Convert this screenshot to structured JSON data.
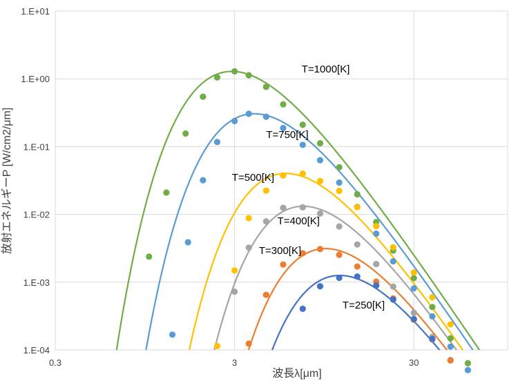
{
  "chart_data": {
    "type": "line",
    "xlabel": "波長λ[μm]",
    "ylabel": "放射エネルギーP [W/cm2/μm]",
    "x_scale": "log",
    "y_scale": "log",
    "xlim": [
      0.3,
      100
    ],
    "ylim": [
      0.0001,
      10
    ],
    "x_ticks": [
      0.3,
      3,
      30
    ],
    "x_tick_labels": [
      "0.3",
      "3",
      "30"
    ],
    "y_ticks": [
      0.0001,
      0.001,
      0.01,
      0.1,
      1,
      10
    ],
    "y_tick_labels": [
      "1.E-04",
      "1.E-03",
      "1.E-02",
      "1.E-01",
      "1.E+00",
      "1.E+01"
    ],
    "grid": true,
    "series": [
      {
        "name": "T=1000[K]",
        "color": "#70ad47",
        "x": [
          1.0,
          1.25,
          1.6,
          2.0,
          2.4,
          3.0,
          3.6,
          4.5,
          5.6,
          7.2,
          9.0,
          11.5,
          14.5,
          18.5,
          23.0,
          30.0,
          38.0,
          48.0,
          60.0
        ],
        "y": [
          0.00238,
          0.021,
          0.156,
          0.545,
          1.05,
          1.29,
          1.13,
          0.76,
          0.42,
          0.21,
          0.112,
          0.0495,
          0.0198,
          0.0077,
          0.00293,
          0.00115,
          0.00043,
          0.000148,
          6.37e-05
        ]
      },
      {
        "name": "T=750[K]",
        "color": "#5b9bd5",
        "x": [
          1.35,
          1.65,
          2.0,
          2.4,
          3.0,
          3.6,
          4.5,
          5.6,
          7.2,
          9.0,
          11.5,
          14.5,
          18.5,
          23.0,
          30.0,
          38.0,
          48.0,
          60.0
        ],
        "y": [
          0.000168,
          0.00388,
          0.0319,
          0.117,
          0.238,
          0.305,
          0.276,
          0.188,
          0.106,
          0.063,
          0.0295,
          0.0129,
          0.0052,
          0.00203,
          0.00081,
          0.000313,
          0.000112,
          5.04e-05
        ]
      },
      {
        "name": "T=500[K]",
        "color": "#ffc000",
        "x": [
          2.4,
          3.0,
          3.6,
          4.5,
          5.6,
          7.2,
          9.0,
          11.5,
          14.5,
          18.5,
          23.0,
          30.0,
          38.0,
          48.0
        ],
        "y": [
          0.000114,
          0.00149,
          0.0088,
          0.0224,
          0.0375,
          0.04,
          0.0311,
          0.0222,
          0.0128,
          0.0067,
          0.00327,
          0.00139,
          0.000598,
          0.000239
        ]
      },
      {
        "name": "T=400[K]",
        "color": "#a5a5a5",
        "x": [
          3.0,
          3.6,
          4.5,
          5.6,
          7.2,
          9.0,
          11.5,
          14.5,
          18.5,
          23.0,
          30.0,
          38.0,
          48.0
        ],
        "y": [
          0.000724,
          0.00323,
          0.00788,
          0.0125,
          0.0127,
          0.0103,
          0.00663,
          0.0036,
          0.00185,
          0.00086,
          0.000354,
          0.000156,
          7.11e-05
        ]
      },
      {
        "name": "T=300[K]",
        "color": "#ed7d31",
        "x": [
          3.6,
          4.5,
          5.6,
          7.2,
          9.0,
          11.5,
          14.5,
          18.5,
          23.0,
          30.0,
          38.0,
          48.0
        ],
        "y": [
          0.000124,
          0.00065,
          0.00182,
          0.00267,
          0.00308,
          0.00253,
          0.0017,
          0.00102,
          0.000575,
          0.000278,
          0.000143,
          7e-05
        ]
      },
      {
        "name": "T=250[K]",
        "color": "#4472c4",
        "x": [
          7.2,
          9.0,
          11.5,
          14.5,
          18.5,
          23.0,
          30.0,
          38.0
        ],
        "y": [
          0.000405,
          0.00087,
          0.00116,
          0.00121,
          0.000895,
          0.000554,
          0.000286,
          0.000145
        ]
      }
    ]
  }
}
